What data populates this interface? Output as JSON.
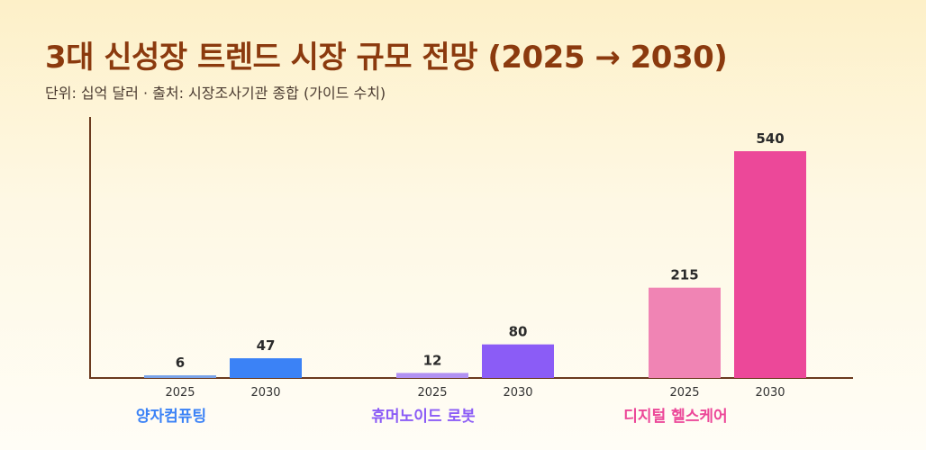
{
  "title": "3대 신성장 트렌드 시장 규모 전망 (2025 → 2030)",
  "subtitle": "단위: 십억 달러   ·   출처: 시장조사기관 종합 (가이드 수치)",
  "colors": {
    "axis": "#6b3a1e",
    "value_label": "#2a2a2a",
    "tick_label": "#333333"
  },
  "chart_data": {
    "type": "bar",
    "x": [
      "2025",
      "2030"
    ],
    "groups": [
      {
        "name": "양자컴퓨팅",
        "values": [
          6,
          47
        ],
        "colors": [
          "#7aa3e8",
          "#3b82f6"
        ],
        "label_color": "#3b82f6"
      },
      {
        "name": "휴머노이드 로봇",
        "values": [
          12,
          80
        ],
        "colors": [
          "#b191f2",
          "#8b5cf6"
        ],
        "label_color": "#8b5cf6"
      },
      {
        "name": "디지털 헬스케어",
        "values": [
          215,
          540
        ],
        "colors": [
          "#f084b4",
          "#ec4899"
        ],
        "label_color": "#ec4899"
      }
    ],
    "ylim": [
      0,
      570
    ],
    "grid": false
  }
}
